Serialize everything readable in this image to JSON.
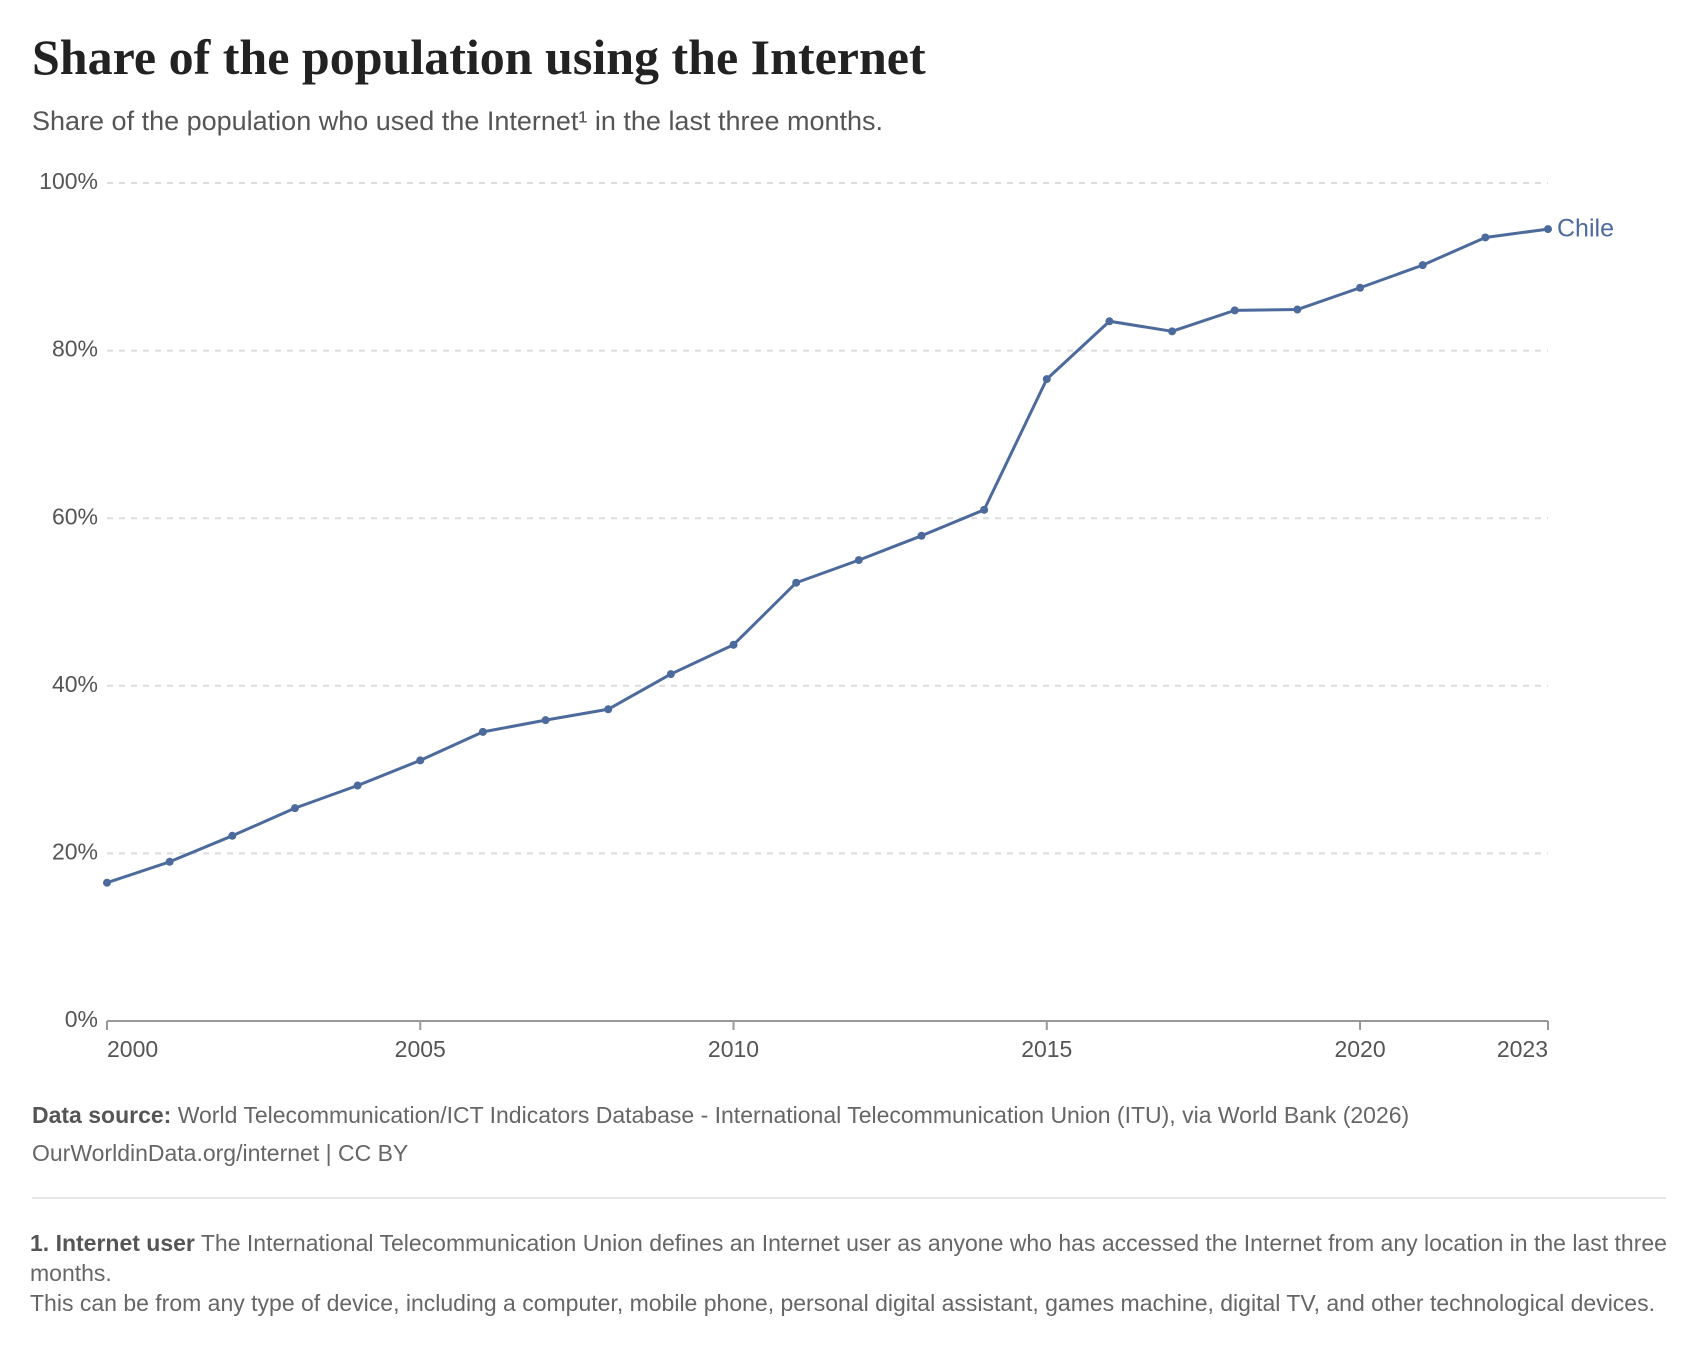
{
  "chart_data": {
    "type": "line",
    "title": "Share of the population using the Internet",
    "subtitle": "Share of the population who used the Internet¹ in the last three months.",
    "x": [
      2000,
      2001,
      2002,
      2003,
      2004,
      2005,
      2006,
      2007,
      2008,
      2009,
      2010,
      2011,
      2012,
      2013,
      2014,
      2015,
      2016,
      2017,
      2018,
      2019,
      2020,
      2021,
      2022,
      2023
    ],
    "series": [
      {
        "name": "Chile",
        "color": "#4c6a9c",
        "values": [
          16.5,
          19.0,
          22.1,
          25.4,
          28.1,
          31.1,
          34.5,
          35.9,
          37.2,
          41.4,
          44.9,
          52.3,
          55.0,
          57.9,
          61.0,
          76.6,
          83.5,
          82.3,
          84.8,
          84.9,
          87.5,
          90.2,
          93.5,
          94.5
        ]
      }
    ],
    "xlim": [
      2000,
      2023
    ],
    "xticks": [
      2000,
      2005,
      2010,
      2015,
      2020,
      2023
    ],
    "ylim": [
      0,
      100
    ],
    "yticks": [
      {
        "value": 0,
        "label": "0%"
      },
      {
        "value": 20,
        "label": "20%"
      },
      {
        "value": 40,
        "label": "40%"
      },
      {
        "value": 60,
        "label": "60%"
      },
      {
        "value": 80,
        "label": "80%"
      },
      {
        "value": 100,
        "label": "100%"
      }
    ],
    "grid": true,
    "source_label": "Data source:",
    "source": "World Telecommunication/ICT Indicators Database - International Telecommunication Union (ITU), via World Bank (2026)",
    "credit": "OurWorldinData.org/internet | CC BY",
    "footnote_label": "1. Internet user",
    "footnote_text": "The International Telecommunication Union defines an Internet user as anyone who has accessed the Internet from any location in the last three months.",
    "footnote_text2": "This can be from any type of device, including a computer, mobile phone, personal digital assistant, games machine, digital TV, and other technological devices."
  }
}
